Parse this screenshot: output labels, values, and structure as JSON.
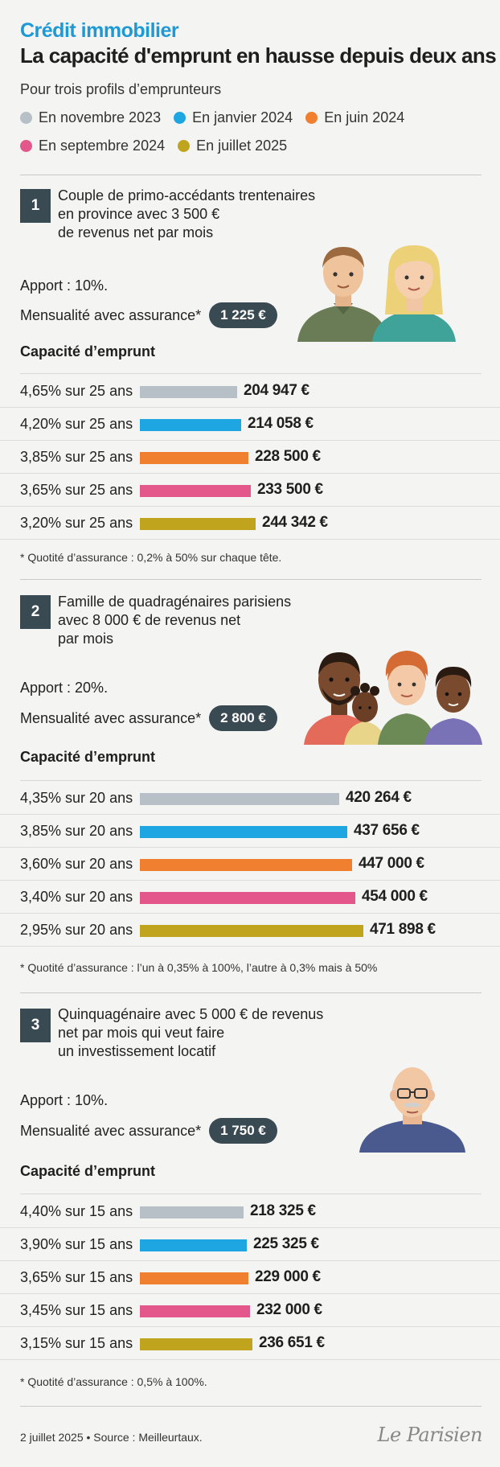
{
  "header": {
    "kicker": "Crédit immobilier",
    "title": "La capacité d'emprunt en hausse depuis deux ans",
    "subtitle": "Pour trois profils d’emprunteurs"
  },
  "legend": [
    {
      "label": "En novembre 2023",
      "color": "#b6c0c6"
    },
    {
      "label": "En janvier 2024",
      "color": "#1ea6e3"
    },
    {
      "label": "En juin 2024",
      "color": "#f07f2f"
    },
    {
      "label": "En septembre 2024",
      "color": "#e4578a"
    },
    {
      "label": "En juillet 2025",
      "color": "#c0a41d"
    }
  ],
  "chart_data": [
    {
      "type": "bar",
      "number": "1",
      "description": "Couple de primo-accédants trentenaires\nen province avec 3 500 €\nde revenus net par mois",
      "apport": "Apport : 10%.",
      "mensualite_label": "Mensualité avec assurance*",
      "mensualite": "1 225 €",
      "capacity_title": "Capacité d’emprunt",
      "categories": [
        "4,65% sur 25 ans",
        "4,20% sur 25 ans",
        "3,85% sur 25 ans",
        "3,65% sur 25 ans",
        "3,20% sur 25 ans"
      ],
      "values": [
        204947,
        214058,
        228500,
        233500,
        244342
      ],
      "value_labels": [
        "204 947 €",
        "214 058 €",
        "228 500 €",
        "233 500 €",
        "244 342 €"
      ],
      "note": "* Quotité d’assurance : 0,2% à 50% sur chaque tête."
    },
    {
      "type": "bar",
      "number": "2",
      "description": "Famille de quadragénaires parisiens\navec 8 000 € de revenus net\npar mois",
      "apport": "Apport : 20%.",
      "mensualite_label": "Mensualité avec assurance*",
      "mensualite": "2 800 €",
      "capacity_title": "Capacité d’emprunt",
      "categories": [
        "4,35% sur 20 ans",
        "3,85% sur 20 ans",
        "3,60% sur 20 ans",
        "3,40% sur 20 ans",
        "2,95% sur 20 ans"
      ],
      "values": [
        420264,
        437656,
        447000,
        454000,
        471898
      ],
      "value_labels": [
        "420 264 €",
        "437 656 €",
        "447 000 €",
        "454 000 €",
        "471 898 €"
      ],
      "note": "* Quotité d’assurance : l’un à 0,35% à 100%, l’autre à 0,3% mais à 50%"
    },
    {
      "type": "bar",
      "number": "3",
      "description": "Quinquagénaire avec 5 000 € de revenus\nnet par mois qui veut faire\nun investissement locatif",
      "apport": "Apport : 10%.",
      "mensualite_label": "Mensualité avec assurance*",
      "mensualite": "1 750 €",
      "capacity_title": "Capacité d’emprunt",
      "categories": [
        "4,40% sur 15 ans",
        "3,90% sur 15 ans",
        "3,65% sur 15 ans",
        "3,45% sur 15 ans",
        "3,15% sur 15 ans"
      ],
      "values": [
        218325,
        225325,
        229000,
        232000,
        236651
      ],
      "value_labels": [
        "218 325 €",
        "225 325 €",
        "229 000 €",
        "232 000 €",
        "236 651 €"
      ],
      "note": "* Quotité d’assurance : 0,5% à 100%."
    }
  ],
  "footer": {
    "source": "2 juillet 2025 • Source : Meilleurtaux.",
    "brand": "Le Parisien"
  }
}
